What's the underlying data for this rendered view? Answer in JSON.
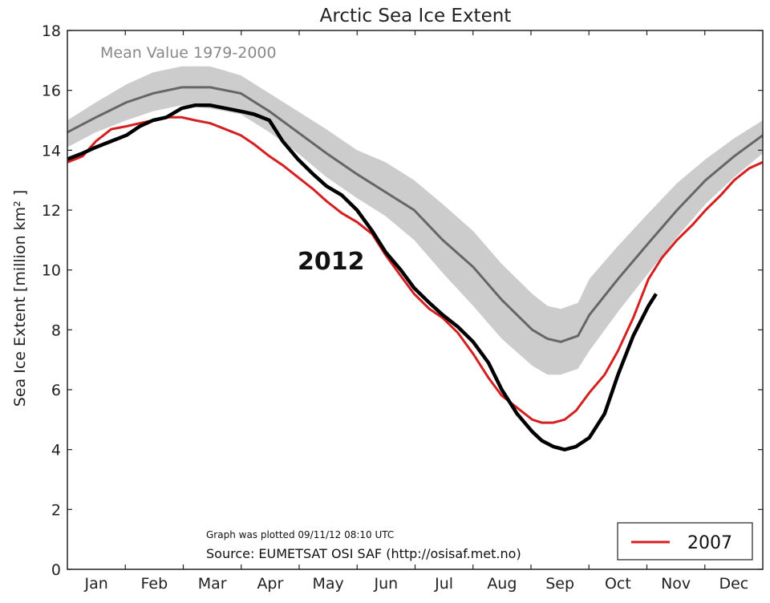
{
  "chart_data": {
    "type": "line",
    "title": "Arctic Sea Ice Extent",
    "ylabel": "Sea Ice Extent [million km² ]",
    "xlabel": "",
    "ylim": [
      0,
      18
    ],
    "yticks": [
      0,
      2,
      4,
      6,
      8,
      10,
      12,
      14,
      16,
      18
    ],
    "xlim": [
      0,
      365
    ],
    "months": [
      "Jan",
      "Feb",
      "Mar",
      "Apr",
      "May",
      "Jun",
      "Jul",
      "Aug",
      "Sep",
      "Oct",
      "Nov",
      "Dec"
    ],
    "mean_label": "Mean Value 1979-2000",
    "year_label": "2012",
    "legend": {
      "label": "2007",
      "position": "lower-right"
    },
    "plotted_note": "Graph was plotted 09/11/12 08:10 UTC",
    "source_note": "Source: EUMETSAT OSI SAF (http://osisaf.met.no)",
    "colors": {
      "mean": "#666666",
      "band": "#cccccc",
      "s2007": "#d42020",
      "s2012": "#000000"
    },
    "grid": false,
    "series": [
      {
        "key": "mean",
        "x": [
          0,
          15,
          31,
          45,
          60,
          75,
          91,
          106,
          121,
          136,
          152,
          167,
          182,
          197,
          213,
          228,
          244,
          252,
          259,
          268,
          274,
          289,
          305,
          320,
          335,
          350,
          365
        ],
        "values": [
          14.6,
          15.1,
          15.6,
          15.9,
          16.1,
          16.1,
          15.9,
          15.3,
          14.6,
          13.9,
          13.2,
          12.6,
          12.0,
          11.0,
          10.1,
          9.0,
          8.0,
          7.7,
          7.6,
          7.8,
          8.5,
          9.7,
          10.9,
          12.0,
          13.0,
          13.8,
          14.5
        ]
      },
      {
        "key": "band_upper",
        "x": [
          0,
          15,
          31,
          45,
          60,
          75,
          91,
          106,
          121,
          136,
          152,
          167,
          182,
          197,
          213,
          228,
          244,
          252,
          259,
          268,
          274,
          289,
          305,
          320,
          335,
          350,
          365
        ],
        "values": [
          15.0,
          15.6,
          16.2,
          16.6,
          16.8,
          16.8,
          16.5,
          15.9,
          15.3,
          14.7,
          14.0,
          13.6,
          13.0,
          12.2,
          11.3,
          10.2,
          9.2,
          8.8,
          8.7,
          8.9,
          9.7,
          10.8,
          11.9,
          12.9,
          13.7,
          14.4,
          15.0
        ]
      },
      {
        "key": "band_lower",
        "x": [
          0,
          15,
          31,
          45,
          60,
          75,
          91,
          106,
          121,
          136,
          152,
          167,
          182,
          197,
          213,
          228,
          244,
          252,
          259,
          268,
          274,
          289,
          305,
          320,
          335,
          350,
          365
        ],
        "values": [
          14.1,
          14.6,
          15.0,
          15.3,
          15.5,
          15.4,
          15.2,
          14.6,
          13.9,
          13.1,
          12.4,
          11.8,
          11.0,
          9.9,
          8.8,
          7.7,
          6.8,
          6.5,
          6.5,
          6.7,
          7.3,
          8.6,
          9.9,
          11.1,
          12.2,
          13.1,
          13.9
        ]
      },
      {
        "key": "s2007",
        "name": "2007",
        "x": [
          0,
          8,
          15,
          23,
          31,
          38,
          45,
          52,
          60,
          67,
          75,
          83,
          91,
          98,
          106,
          113,
          121,
          129,
          136,
          144,
          152,
          160,
          167,
          175,
          182,
          190,
          197,
          205,
          213,
          221,
          228,
          236,
          244,
          249,
          255,
          261,
          267,
          274,
          282,
          289,
          297,
          305,
          312,
          320,
          328,
          335,
          343,
          350,
          358,
          365
        ],
        "values": [
          13.6,
          13.8,
          14.3,
          14.7,
          14.8,
          14.9,
          15.0,
          15.1,
          15.1,
          15.0,
          14.9,
          14.7,
          14.5,
          14.2,
          13.8,
          13.5,
          13.1,
          12.7,
          12.3,
          11.9,
          11.6,
          11.2,
          10.5,
          9.8,
          9.2,
          8.7,
          8.4,
          7.9,
          7.2,
          6.4,
          5.8,
          5.4,
          5.0,
          4.9,
          4.9,
          5.0,
          5.3,
          5.9,
          6.5,
          7.3,
          8.4,
          9.7,
          10.4,
          11.0,
          11.5,
          12.0,
          12.5,
          13.0,
          13.4,
          13.6
        ]
      },
      {
        "key": "s2012",
        "name": "2012",
        "x": [
          0,
          8,
          15,
          23,
          31,
          38,
          45,
          52,
          60,
          67,
          75,
          83,
          91,
          98,
          106,
          113,
          121,
          129,
          136,
          144,
          152,
          160,
          167,
          175,
          182,
          190,
          197,
          205,
          213,
          221,
          228,
          236,
          244,
          249,
          255,
          261,
          267,
          274,
          282,
          289,
          297,
          305,
          309
        ],
        "values": [
          13.7,
          13.9,
          14.1,
          14.3,
          14.5,
          14.8,
          15.0,
          15.1,
          15.4,
          15.5,
          15.5,
          15.4,
          15.3,
          15.2,
          15.0,
          14.3,
          13.7,
          13.2,
          12.8,
          12.5,
          12.0,
          11.3,
          10.6,
          10.0,
          9.4,
          8.9,
          8.5,
          8.1,
          7.6,
          6.9,
          6.0,
          5.2,
          4.6,
          4.3,
          4.1,
          4.0,
          4.1,
          4.4,
          5.2,
          6.5,
          7.8,
          8.8,
          9.2
        ]
      }
    ]
  }
}
